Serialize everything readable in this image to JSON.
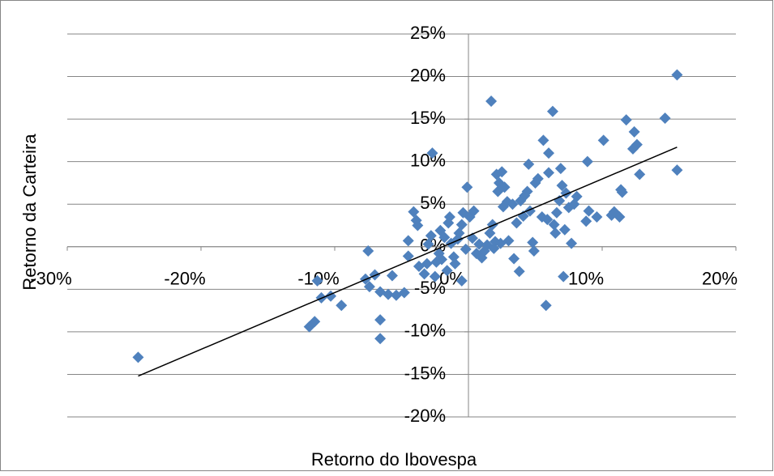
{
  "chart_data": {
    "type": "scatter",
    "x_label": "Retorno do Ibovespa",
    "y_label": "Retorno da Carteira",
    "xlim": [
      -30,
      20
    ],
    "ylim": [
      -20,
      25
    ],
    "xticks": [
      {
        "value": -30,
        "label": "-30%"
      },
      {
        "value": -20,
        "label": "-20%"
      },
      {
        "value": -10,
        "label": "-10%"
      },
      {
        "value": 0,
        "label": "0%"
      },
      {
        "value": 10,
        "label": "10%"
      },
      {
        "value": 20,
        "label": "20%"
      }
    ],
    "yticks": [
      {
        "value": -20,
        "label": "-20%"
      },
      {
        "value": -15,
        "label": "-15%"
      },
      {
        "value": -10,
        "label": "-10%"
      },
      {
        "value": -5,
        "label": "-5%"
      },
      {
        "value": 0,
        "label": "0%"
      },
      {
        "value": 5,
        "label": "5%"
      },
      {
        "value": 10,
        "label": "10%"
      },
      {
        "value": 15,
        "label": "15%"
      },
      {
        "value": 20,
        "label": "20%"
      },
      {
        "value": 25,
        "label": "25%"
      }
    ],
    "grid": true,
    "color": "#4f81bd",
    "x": [
      -24.7,
      -11.9,
      -11.5,
      -11.3,
      -11.0,
      -10.3,
      -9.5,
      -7.7,
      -7.4,
      -7.5,
      -7.0,
      -6.6,
      -6.6,
      -6.6,
      -6.0,
      -5.7,
      -5.4,
      -4.8,
      -4.5,
      -4.5,
      -4.1,
      -3.9,
      -3.8,
      -3.7,
      -3.3,
      -3.1,
      -3.0,
      -2.8,
      -2.7,
      -2.5,
      -2.4,
      -2.2,
      -2.1,
      -2.0,
      -1.8,
      -1.6,
      -1.5,
      -1.4,
      -1.3,
      -1.1,
      -1.0,
      -0.8,
      -0.7,
      -0.5,
      -0.5,
      -0.4,
      -0.2,
      -0.1,
      0.1,
      0.3,
      0.4,
      0.6,
      0.8,
      1.0,
      1.2,
      1.4,
      1.6,
      1.7,
      1.8,
      1.9,
      2.0,
      2.1,
      2.2,
      2.3,
      2.4,
      2.5,
      2.6,
      2.7,
      2.9,
      3.0,
      3.3,
      3.4,
      3.6,
      3.8,
      3.9,
      4.1,
      4.2,
      4.4,
      4.5,
      4.6,
      4.8,
      4.9,
      5.0,
      5.2,
      5.5,
      5.6,
      5.8,
      5.9,
      6.0,
      6.0,
      6.3,
      6.4,
      6.5,
      6.6,
      6.8,
      6.9,
      7.0,
      7.1,
      7.2,
      7.3,
      7.5,
      7.7,
      7.9,
      8.1,
      8.8,
      8.9,
      9.0,
      9.6,
      10.1,
      10.7,
      10.9,
      11.3,
      11.4,
      11.5,
      11.8,
      12.3,
      12.4,
      12.6,
      12.8,
      14.7,
      15.6,
      15.6
    ],
    "y": [
      -13.0,
      -9.4,
      -8.8,
      -4.0,
      -6.0,
      -5.8,
      -6.9,
      -3.8,
      -4.7,
      -0.5,
      -3.3,
      -5.3,
      -8.6,
      -10.8,
      -5.6,
      -3.4,
      -5.7,
      -5.4,
      -1.1,
      0.7,
      4.1,
      3.1,
      2.5,
      -2.3,
      -3.2,
      -2.0,
      0.3,
      1.3,
      11.0,
      -3.5,
      -1.8,
      -0.8,
      1.9,
      -1.5,
      1.1,
      -2.8,
      2.8,
      3.5,
      0.4,
      -1.2,
      -2.0,
      0.9,
      1.6,
      -4.0,
      2.6,
      4.0,
      -0.3,
      7.0,
      3.5,
      1.0,
      4.2,
      -0.8,
      0.3,
      -1.3,
      -0.5,
      0.2,
      1.6,
      17.1,
      2.6,
      -0.2,
      0.6,
      8.5,
      6.5,
      7.5,
      0.4,
      8.8,
      4.7,
      7.0,
      5.3,
      0.7,
      5.0,
      -1.4,
      2.8,
      -2.9,
      5.4,
      3.6,
      6.0,
      6.5,
      9.7,
      4.2,
      0.5,
      -0.5,
      7.5,
      8.0,
      3.5,
      12.5,
      -6.9,
      3.2,
      8.7,
      11.0,
      15.9,
      2.6,
      1.6,
      4.0,
      5.4,
      9.2,
      7.2,
      -3.5,
      2.0,
      6.3,
      4.6,
      0.4,
      5.0,
      5.9,
      3.0,
      10.0,
      4.2,
      3.5,
      12.5,
      3.7,
      4.1,
      3.5,
      6.7,
      6.4,
      14.9,
      11.5,
      13.5,
      12.0,
      8.5,
      15.1,
      20.2,
      9.0
    ],
    "trendline": {
      "x": [
        -24.7,
        15.6
      ],
      "y": [
        -15.2,
        11.7
      ],
      "color": "#000000"
    }
  }
}
